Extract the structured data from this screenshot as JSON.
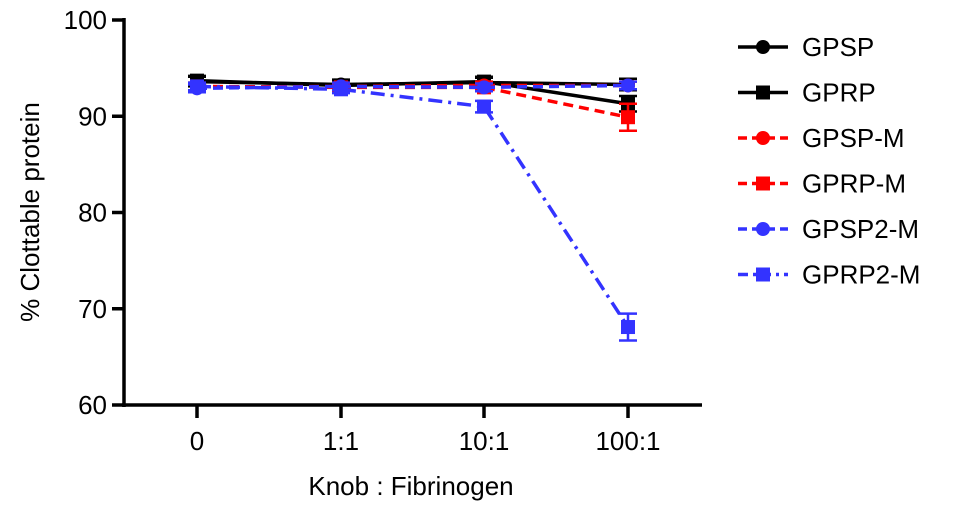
{
  "chart_data": {
    "type": "line",
    "title": "",
    "xlabel": "Knob : Fibrinogen",
    "ylabel": "% Clottable protein",
    "categories": [
      "0",
      "1:1",
      "10:1",
      "100:1"
    ],
    "ylim": [
      60,
      100
    ],
    "yticks": [
      "60",
      "70",
      "80",
      "90",
      "100"
    ],
    "grid": false,
    "legend_position": "right",
    "series": [
      {
        "name": "GPSP",
        "values": [
          93.6,
          93.3,
          93.5,
          93.3
        ],
        "errors": [
          0.5,
          0.5,
          0.5,
          0.6
        ],
        "color": "#000000",
        "marker": "circle",
        "line_style": "solid"
      },
      {
        "name": "GPRP",
        "values": [
          93.7,
          93.2,
          93.6,
          91.3
        ],
        "errors": [
          0.5,
          0.5,
          0.5,
          0.8
        ],
        "color": "#000000",
        "marker": "square",
        "line_style": "solid"
      },
      {
        "name": "GPSP-M",
        "values": [
          93.0,
          93.1,
          93.2,
          93.2
        ],
        "errors": [
          0.4,
          0.4,
          0.4,
          0.4
        ],
        "color": "#ff0000",
        "marker": "circle",
        "line_style": "dashed"
      },
      {
        "name": "GPRP-M",
        "values": [
          93.1,
          93.0,
          93.0,
          89.9
        ],
        "errors": [
          0.4,
          0.4,
          0.4,
          1.4
        ],
        "color": "#ff0000",
        "marker": "square",
        "line_style": "dashed"
      },
      {
        "name": "GPSP2-M",
        "values": [
          92.9,
          93.1,
          93.0,
          93.2
        ],
        "errors": [
          0.4,
          0.4,
          0.4,
          0.4
        ],
        "color": "#3333ff",
        "marker": "circle",
        "line_style": "dashed"
      },
      {
        "name": "GPRP2-M",
        "values": [
          93.1,
          92.8,
          91.0,
          68.1
        ],
        "errors": [
          0.4,
          0.4,
          0.6,
          1.4
        ],
        "color": "#3333ff",
        "marker": "square",
        "line_style": "dashdot"
      }
    ]
  }
}
